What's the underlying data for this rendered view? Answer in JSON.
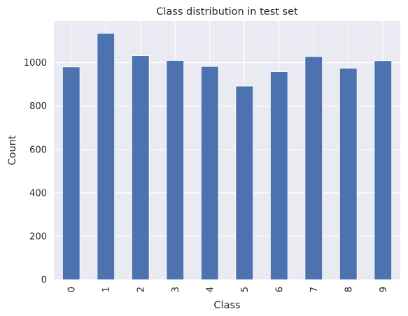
{
  "chart_data": {
    "type": "bar",
    "title": "Class distribution in test set",
    "xlabel": "Class",
    "ylabel": "Count",
    "categories": [
      "0",
      "1",
      "2",
      "3",
      "4",
      "5",
      "6",
      "7",
      "8",
      "9"
    ],
    "values": [
      980,
      1135,
      1032,
      1010,
      982,
      892,
      958,
      1028,
      974,
      1009
    ],
    "ylim": [
      0,
      1192
    ],
    "yticks": [
      0,
      200,
      400,
      600,
      800,
      1000
    ],
    "x_tick_rotation": "vertical",
    "grid": true,
    "legend": false,
    "colors": {
      "bar": "#4c72b0",
      "bar_edge": "#ffffff",
      "plot_background": "#eaeaf2",
      "grid": "#ffffff",
      "text": "#262626"
    }
  }
}
